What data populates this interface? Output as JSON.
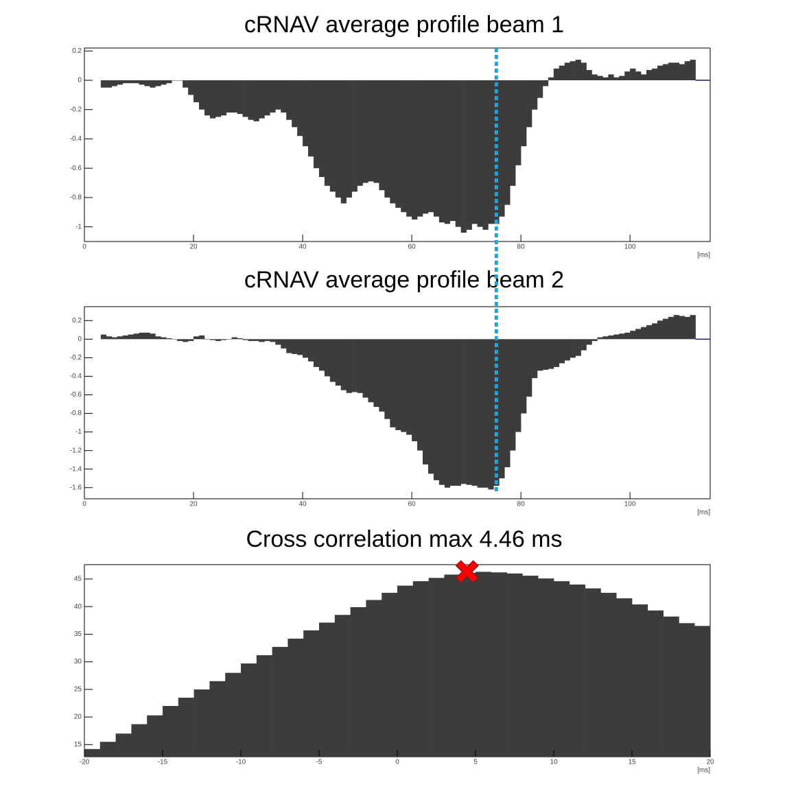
{
  "cursor": {
    "x": 75.5,
    "color": "#1aa7e0"
  },
  "chart_data": [
    {
      "type": "histogram",
      "title": "cRNAV average profile beam 1",
      "xlabel": "[ms]",
      "color": "#3c3c3c",
      "edgecolor": "#1f1f66",
      "xlim": [
        0,
        114.7
      ],
      "xticks": [
        0,
        20,
        40,
        60,
        80,
        100
      ],
      "ylim": [
        -1.1,
        0.22
      ],
      "yticks": [
        0.2,
        0,
        -0.2,
        -0.4,
        -0.6,
        -0.8,
        -1
      ],
      "bins": [
        3,
        4,
        5,
        6,
        7,
        8,
        9,
        10,
        11,
        12,
        13,
        14,
        15,
        16,
        17,
        18,
        19,
        20,
        21,
        22,
        23,
        24,
        25,
        26,
        27,
        28,
        29,
        30,
        31,
        32,
        33,
        34,
        35,
        36,
        37,
        38,
        39,
        40,
        41,
        42,
        43,
        44,
        45,
        46,
        47,
        48,
        49,
        50,
        51,
        52,
        53,
        54,
        55,
        56,
        57,
        58,
        59,
        60,
        61,
        62,
        63,
        64,
        65,
        66,
        67,
        68,
        69,
        70,
        71,
        72,
        73,
        74,
        75,
        76,
        77,
        78,
        79,
        80,
        81,
        82,
        83,
        84,
        85,
        86,
        87,
        88,
        89,
        90,
        91,
        92,
        93,
        94,
        95,
        96,
        97,
        98,
        99,
        100,
        101,
        102,
        103,
        104,
        105,
        106,
        107,
        108,
        109,
        110,
        111,
        112
      ],
      "values": [
        -0.05,
        -0.05,
        -0.04,
        -0.03,
        -0.02,
        -0.02,
        -0.02,
        -0.03,
        -0.04,
        -0.05,
        -0.04,
        -0.03,
        -0.02,
        0,
        0,
        -0.05,
        -0.1,
        -0.15,
        -0.2,
        -0.24,
        -0.26,
        -0.25,
        -0.24,
        -0.22,
        -0.22,
        -0.23,
        -0.25,
        -0.27,
        -0.28,
        -0.26,
        -0.24,
        -0.22,
        -0.2,
        -0.22,
        -0.27,
        -0.32,
        -0.38,
        -0.45,
        -0.52,
        -0.6,
        -0.66,
        -0.72,
        -0.76,
        -0.8,
        -0.84,
        -0.8,
        -0.76,
        -0.72,
        -0.7,
        -0.69,
        -0.7,
        -0.75,
        -0.8,
        -0.84,
        -0.87,
        -0.9,
        -0.93,
        -0.95,
        -0.93,
        -0.91,
        -0.9,
        -0.93,
        -0.97,
        -0.98,
        -0.96,
        -1.0,
        -1.04,
        -1.02,
        -0.98,
        -1.0,
        -1.02,
        -0.98,
        -0.98,
        -0.93,
        -0.85,
        -0.72,
        -0.58,
        -0.45,
        -0.32,
        -0.2,
        -0.12,
        -0.04,
        0.02,
        0.08,
        0.1,
        0.12,
        0.13,
        0.14,
        0.12,
        0.07,
        0.04,
        0.03,
        0.02,
        0.04,
        0.02,
        0.03,
        0.06,
        0.08,
        0.06,
        0.04,
        0.07,
        0.08,
        0.1,
        0.11,
        0.12,
        0.12,
        0.11,
        0.13,
        0.14
      ]
    },
    {
      "type": "histogram",
      "title": "cRNAV average profile beam 2",
      "xlabel": "[ms]",
      "color": "#3c3c3c",
      "edgecolor": "#1f1f66",
      "xlim": [
        0,
        114.7
      ],
      "xticks": [
        0,
        20,
        40,
        60,
        80,
        100
      ],
      "ylim": [
        -1.72,
        0.35
      ],
      "yticks": [
        0.2,
        0,
        -0.2,
        -0.4,
        -0.6,
        -0.8,
        -1,
        -1.2,
        -1.4,
        -1.6
      ],
      "bins": [
        3,
        4,
        5,
        6,
        7,
        8,
        9,
        10,
        11,
        12,
        13,
        14,
        15,
        16,
        17,
        18,
        19,
        20,
        21,
        22,
        23,
        24,
        25,
        26,
        27,
        28,
        29,
        30,
        31,
        32,
        33,
        34,
        35,
        36,
        37,
        38,
        39,
        40,
        41,
        42,
        43,
        44,
        45,
        46,
        47,
        48,
        49,
        50,
        51,
        52,
        53,
        54,
        55,
        56,
        57,
        58,
        59,
        60,
        61,
        62,
        63,
        64,
        65,
        66,
        67,
        68,
        69,
        70,
        71,
        72,
        73,
        74,
        75,
        76,
        77,
        78,
        79,
        80,
        81,
        82,
        83,
        84,
        85,
        86,
        87,
        88,
        89,
        90,
        91,
        92,
        93,
        94,
        95,
        96,
        97,
        98,
        99,
        100,
        101,
        102,
        103,
        104,
        105,
        106,
        107,
        108,
        109,
        110,
        111,
        112
      ],
      "values": [
        0.05,
        0.03,
        0.02,
        0.03,
        0.04,
        0.05,
        0.06,
        0.07,
        0.07,
        0.06,
        0.03,
        0.02,
        0.01,
        0,
        -0.02,
        -0.03,
        -0.02,
        0.03,
        0.04,
        0,
        -0.01,
        -0.02,
        -0.01,
        0,
        0.02,
        0.01,
        -0.01,
        -0.02,
        -0.02,
        -0.03,
        -0.02,
        -0.03,
        -0.06,
        -0.1,
        -0.15,
        -0.16,
        -0.17,
        -0.2,
        -0.24,
        -0.3,
        -0.34,
        -0.4,
        -0.46,
        -0.5,
        -0.55,
        -0.58,
        -0.57,
        -0.58,
        -0.63,
        -0.68,
        -0.73,
        -0.78,
        -0.86,
        -0.95,
        -0.98,
        -1.0,
        -1.03,
        -1.1,
        -1.2,
        -1.35,
        -1.45,
        -1.52,
        -1.57,
        -1.6,
        -1.58,
        -1.58,
        -1.56,
        -1.57,
        -1.58,
        -1.6,
        -1.6,
        -1.62,
        -1.58,
        -1.5,
        -1.38,
        -1.2,
        -1.0,
        -0.8,
        -0.62,
        -0.42,
        -0.34,
        -0.33,
        -0.32,
        -0.3,
        -0.26,
        -0.23,
        -0.2,
        -0.18,
        -0.12,
        -0.06,
        -0.02,
        0.02,
        0.03,
        0.04,
        0.05,
        0.06,
        0.07,
        0.09,
        0.11,
        0.13,
        0.15,
        0.17,
        0.2,
        0.22,
        0.24,
        0.26,
        0.25,
        0.24,
        0.26
      ]
    },
    {
      "type": "histogram",
      "title": "Cross correlation max 4.46 ms",
      "xlabel": "[ms]",
      "color": "#3c3c3c",
      "edgecolor": "#1f1f66",
      "xlim": [
        -20,
        20
      ],
      "xticks": [
        -20,
        -15,
        -10,
        -5,
        0,
        5,
        10,
        15,
        20
      ],
      "ylim": [
        12.8,
        47.6
      ],
      "yticks": [
        15,
        20,
        25,
        30,
        35,
        40,
        45
      ],
      "bins": [
        -20,
        -19,
        -18,
        -17,
        -16,
        -15,
        -14,
        -13,
        -12,
        -11,
        -10,
        -9,
        -8,
        -7,
        -6,
        -5,
        -4,
        -3,
        -2,
        -1,
        0,
        1,
        2,
        3,
        4,
        5,
        6,
        7,
        8,
        9,
        10,
        11,
        12,
        13,
        14,
        15,
        16,
        17,
        18,
        19,
        20
      ],
      "values": [
        14.2,
        15.5,
        17,
        18.7,
        20.3,
        22,
        23.5,
        25,
        26.5,
        28,
        29.7,
        31.2,
        32.7,
        34.2,
        35.7,
        37.1,
        38.5,
        39.9,
        41.2,
        42.5,
        43.8,
        44.6,
        45.2,
        45.8,
        46.1,
        46.3,
        46.2,
        46,
        45.6,
        45.1,
        44.6,
        44,
        43.3,
        42.5,
        41.5,
        40.4,
        39.3,
        38.2,
        37,
        36.5
      ],
      "marker": {
        "x": 4.46,
        "y": 46.3,
        "color": "#ff0000"
      }
    }
  ]
}
